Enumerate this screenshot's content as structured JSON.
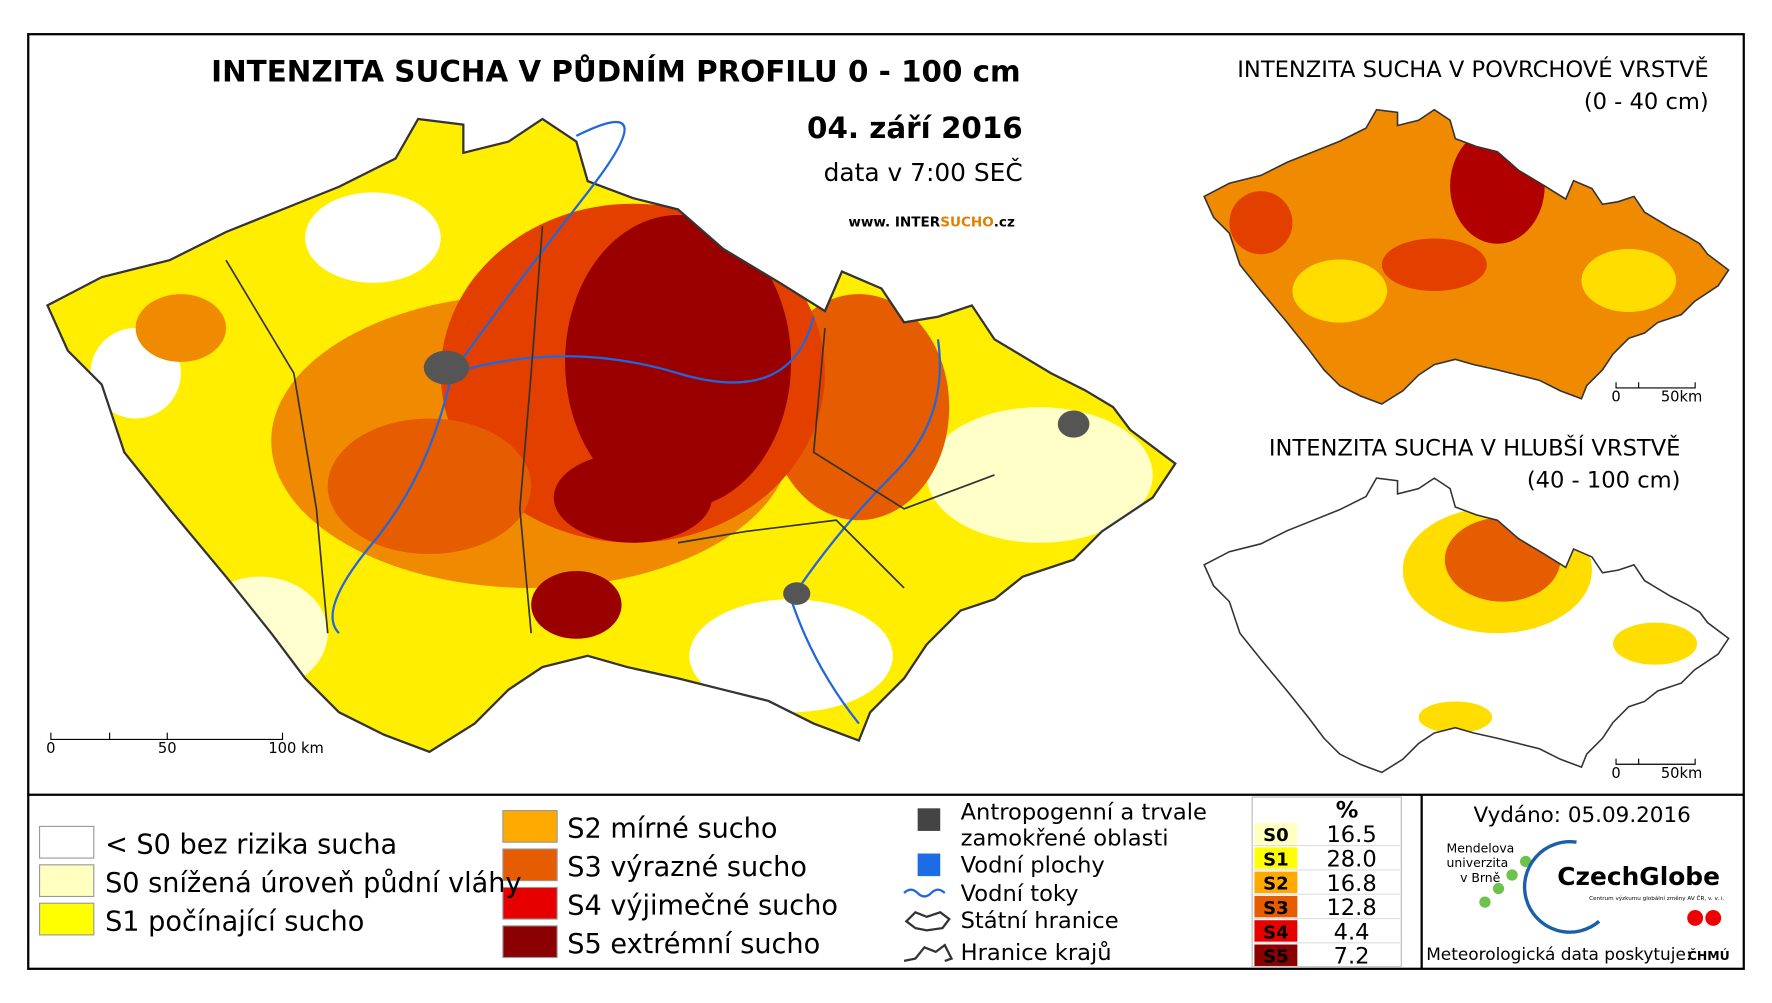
{
  "main_map": {
    "title": "INTENZITA SUCHA V PŮDNÍM PROFILU 0 - 100 cm",
    "date": "04. září 2016",
    "time_note": "data v 7:00 SEČ",
    "website": [
      "www. INTER",
      "SUCHO",
      ".cz"
    ],
    "scale": [
      "0",
      "50",
      "100 km"
    ]
  },
  "inset_surface": {
    "title": "INTENZITA SUCHA V POVRCHOVÉ VRSTVĚ",
    "subtitle": "(0 - 40 cm)",
    "scale": [
      "0",
      "50km"
    ]
  },
  "inset_deep": {
    "title": "INTENZITA SUCHA V HLUBŠÍ VRSTVĚ",
    "subtitle": "(40 - 100 cm)",
    "scale": [
      "0",
      "50km"
    ]
  },
  "legend": {
    "classes": [
      "< S0 bez rizika sucha",
      "S0 snížená úroveň půdní vláhy",
      "S1 počínající sucho",
      "S2 mírné sucho",
      "S3 výrazné sucho",
      "S4 výjimečné sucho",
      "S5 extrémní sucho"
    ],
    "features": [
      [
        "Antropogenní a trvale",
        "zamokřené oblasti"
      ],
      [
        "Vodní plochy"
      ],
      [
        "Vodní toky"
      ],
      [
        "Státní hranice"
      ],
      [
        "Hranice krajů"
      ]
    ]
  },
  "stats": {
    "header": "%",
    "rows": [
      {
        "class": "S0",
        "percent": "16.5"
      },
      {
        "class": "S1",
        "percent": "28.0"
      },
      {
        "class": "S2",
        "percent": "16.8"
      },
      {
        "class": "S3",
        "percent": "12.8"
      },
      {
        "class": "S4",
        "percent": "4.4"
      },
      {
        "class": "S5",
        "percent": "7.2"
      }
    ]
  },
  "issued": "Vydáno: 05.09.2016",
  "logos": {
    "mendel": [
      "Mendelova",
      "univerzita",
      "v Brně"
    ],
    "czechglobe": "CzechGlobe",
    "czechglobe_sub": "Centrum výzkumu globální změny AV ČR, v. v. i.",
    "provider": "Meteorologická data poskytuje:",
    "chmu": "ČHMÚ"
  }
}
